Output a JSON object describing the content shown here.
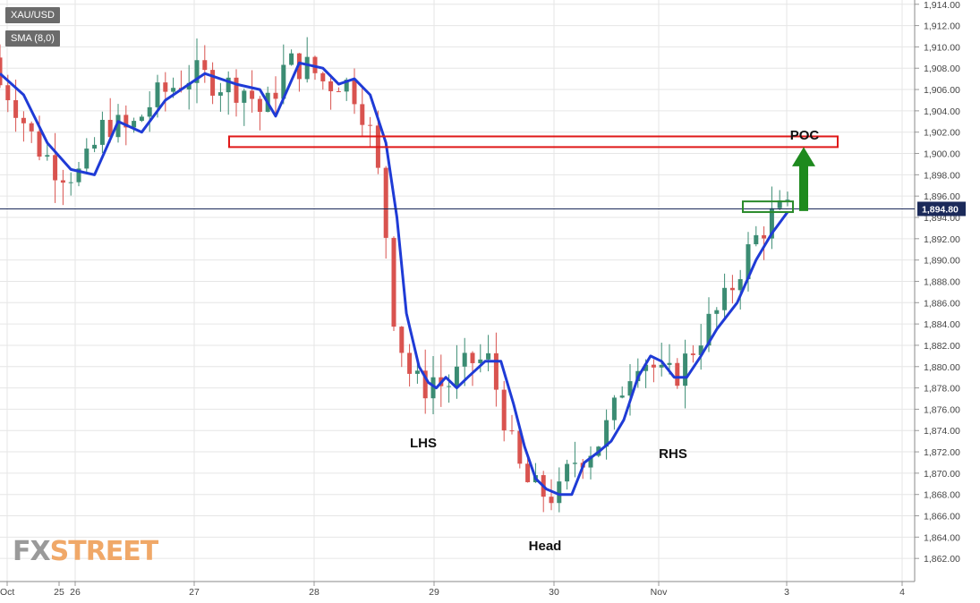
{
  "chart_data": {
    "type": "candlestick",
    "symbol": "XAU/USD",
    "indicator": "SMA (8,0)",
    "last_price": "1,894.80",
    "ylim": [
      1860,
      1914
    ],
    "y_ticks": [
      "1,862.00",
      "1,864.00",
      "1,866.00",
      "1,868.00",
      "1,870.00",
      "1,872.00",
      "1,874.00",
      "1,876.00",
      "1,878.00",
      "1,880.00",
      "1,882.00",
      "1,884.00",
      "1,886.00",
      "1,888.00",
      "1,890.00",
      "1,892.00",
      "1,894.00",
      "1,896.00",
      "1,898.00",
      "1,900.00",
      "1,902.00",
      "1,904.00",
      "1,906.00",
      "1,908.00",
      "1,910.00",
      "1,912.00",
      "1,914.00"
    ],
    "x_ticks": [
      "Oct",
      "25",
      "26",
      "27",
      "28",
      "29",
      "30",
      "Nov",
      "3",
      "4"
    ],
    "annotations": [
      "LHS",
      "Head",
      "RHS",
      "POC"
    ],
    "poc_zone": [
      1900.6,
      1901.6
    ],
    "sma_key_points": [
      [
        0,
        1907.5
      ],
      [
        15,
        1905.5
      ],
      [
        30,
        1901
      ],
      [
        45,
        1898.5
      ],
      [
        60,
        1898
      ],
      [
        75,
        1903
      ],
      [
        90,
        1902
      ],
      [
        105,
        1905
      ],
      [
        120,
        1906.5
      ],
      [
        130,
        1907.5
      ],
      [
        150,
        1906.5
      ],
      [
        165,
        1906
      ],
      [
        175,
        1903.5
      ],
      [
        190,
        1908.5
      ],
      [
        205,
        1908
      ],
      [
        215,
        1906.5
      ],
      [
        225,
        1907
      ],
      [
        235,
        1905.5
      ],
      [
        245,
        1901
      ],
      [
        252,
        1894
      ],
      [
        258,
        1885
      ],
      [
        266,
        1880
      ],
      [
        272,
        1878.5
      ],
      [
        277,
        1878
      ],
      [
        283,
        1879
      ],
      [
        290,
        1878
      ],
      [
        297,
        1879
      ],
      [
        308,
        1880.5
      ],
      [
        318,
        1880.5
      ],
      [
        326,
        1876.5
      ],
      [
        333,
        1872.5
      ],
      [
        340,
        1869.5
      ],
      [
        347,
        1868.5
      ],
      [
        355,
        1868
      ],
      [
        363,
        1868
      ],
      [
        371,
        1871
      ],
      [
        380,
        1872
      ],
      [
        388,
        1873
      ],
      [
        396,
        1875
      ],
      [
        405,
        1879
      ],
      [
        413,
        1881
      ],
      [
        420,
        1880.5
      ],
      [
        428,
        1879
      ],
      [
        436,
        1879
      ],
      [
        445,
        1881
      ],
      [
        455,
        1883.5
      ],
      [
        468,
        1886
      ],
      [
        480,
        1890
      ],
      [
        490,
        1892.5
      ],
      [
        500,
        1894.5
      ]
    ]
  },
  "watermark": "FXSTREET"
}
